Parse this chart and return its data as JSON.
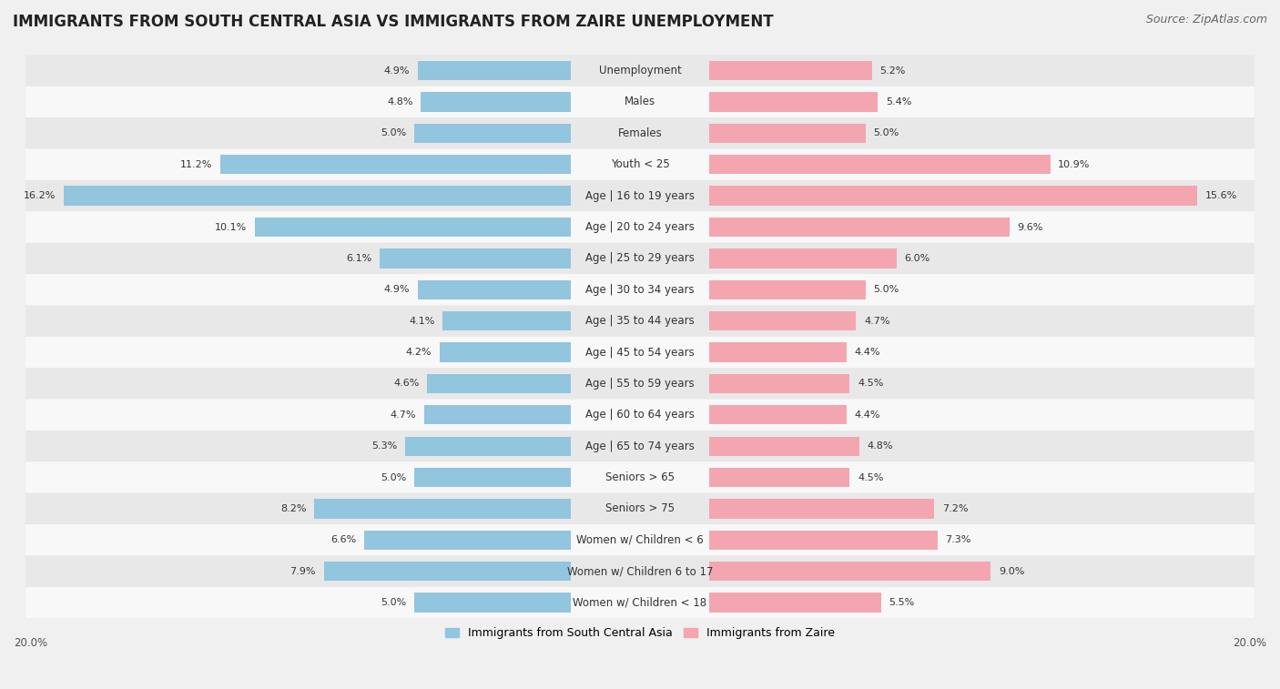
{
  "title": "IMMIGRANTS FROM SOUTH CENTRAL ASIA VS IMMIGRANTS FROM ZAIRE UNEMPLOYMENT",
  "source": "Source: ZipAtlas.com",
  "categories": [
    "Unemployment",
    "Males",
    "Females",
    "Youth < 25",
    "Age | 16 to 19 years",
    "Age | 20 to 24 years",
    "Age | 25 to 29 years",
    "Age | 30 to 34 years",
    "Age | 35 to 44 years",
    "Age | 45 to 54 years",
    "Age | 55 to 59 years",
    "Age | 60 to 64 years",
    "Age | 65 to 74 years",
    "Seniors > 65",
    "Seniors > 75",
    "Women w/ Children < 6",
    "Women w/ Children 6 to 17",
    "Women w/ Children < 18"
  ],
  "left_values": [
    4.9,
    4.8,
    5.0,
    11.2,
    16.2,
    10.1,
    6.1,
    4.9,
    4.1,
    4.2,
    4.6,
    4.7,
    5.3,
    5.0,
    8.2,
    6.6,
    7.9,
    5.0
  ],
  "right_values": [
    5.2,
    5.4,
    5.0,
    10.9,
    15.6,
    9.6,
    6.0,
    5.0,
    4.7,
    4.4,
    4.5,
    4.4,
    4.8,
    4.5,
    7.2,
    7.3,
    9.0,
    5.5
  ],
  "left_color": "#92c5de",
  "right_color": "#f4a6b0",
  "left_label": "Immigrants from South Central Asia",
  "right_label": "Immigrants from Zaire",
  "xlim": 20.0,
  "background_color": "#f0f0f0",
  "title_fontsize": 12,
  "source_fontsize": 9,
  "label_fontsize": 8.5,
  "value_fontsize": 8,
  "bar_height": 0.62,
  "row_colors": [
    "#e8e8e8",
    "#f8f8f8"
  ],
  "axis_label_20_left": "20.0%",
  "axis_label_20_right": "20.0%"
}
